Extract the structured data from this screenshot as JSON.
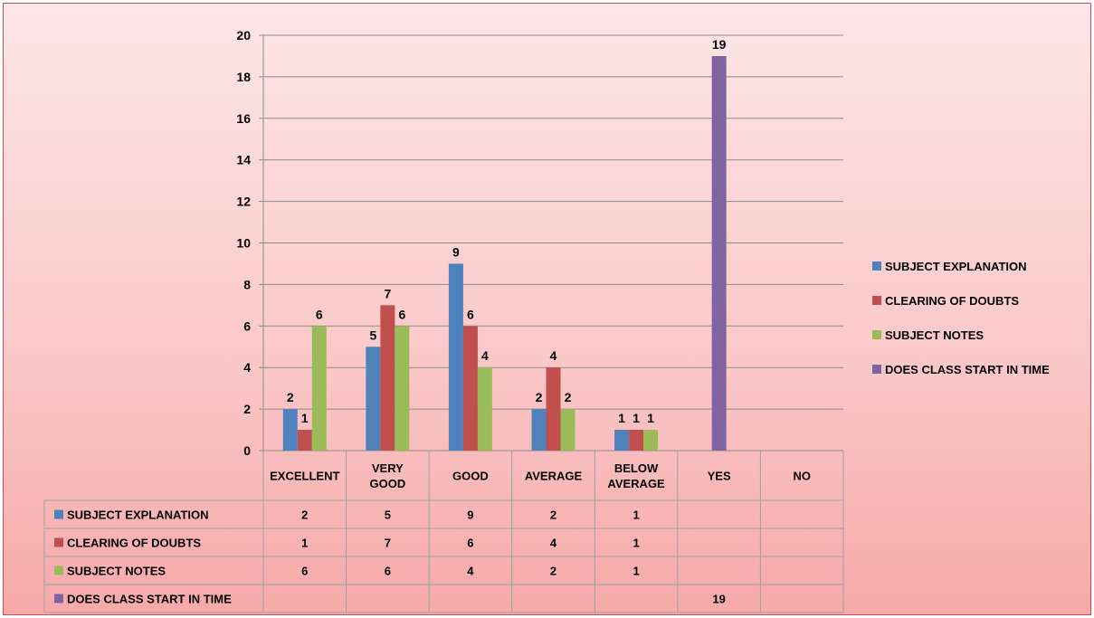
{
  "chart_data": {
    "type": "bar",
    "categories": [
      "EXCELLENT",
      "VERY GOOD",
      "GOOD",
      "AVERAGE",
      "BELOW AVERAGE",
      "YES",
      "NO"
    ],
    "category_lines": [
      [
        "EXCELLENT"
      ],
      [
        "VERY",
        "GOOD"
      ],
      [
        "GOOD"
      ],
      [
        "AVERAGE"
      ],
      [
        "BELOW",
        "AVERAGE"
      ],
      [
        "YES"
      ],
      [
        "NO"
      ]
    ],
    "series": [
      {
        "name": "SUBJECT EXPLANATION",
        "color": "#4f81bd",
        "values": [
          2,
          5,
          9,
          2,
          1,
          null,
          null
        ]
      },
      {
        "name": "CLEARING OF DOUBTS",
        "color": "#c0504d",
        "values": [
          1,
          7,
          6,
          4,
          1,
          null,
          null
        ]
      },
      {
        "name": "SUBJECT NOTES",
        "color": "#9bbb59",
        "values": [
          6,
          6,
          4,
          2,
          1,
          null,
          null
        ]
      },
      {
        "name": "DOES CLASS START IN TIME",
        "color": "#8064a2",
        "values": [
          null,
          null,
          null,
          null,
          null,
          19,
          null
        ]
      }
    ],
    "ylim": [
      0,
      20
    ],
    "yticks": [
      0,
      2,
      4,
      6,
      8,
      10,
      12,
      14,
      16,
      18,
      20
    ],
    "grid": true,
    "legend_position": "right",
    "data_table": true
  }
}
